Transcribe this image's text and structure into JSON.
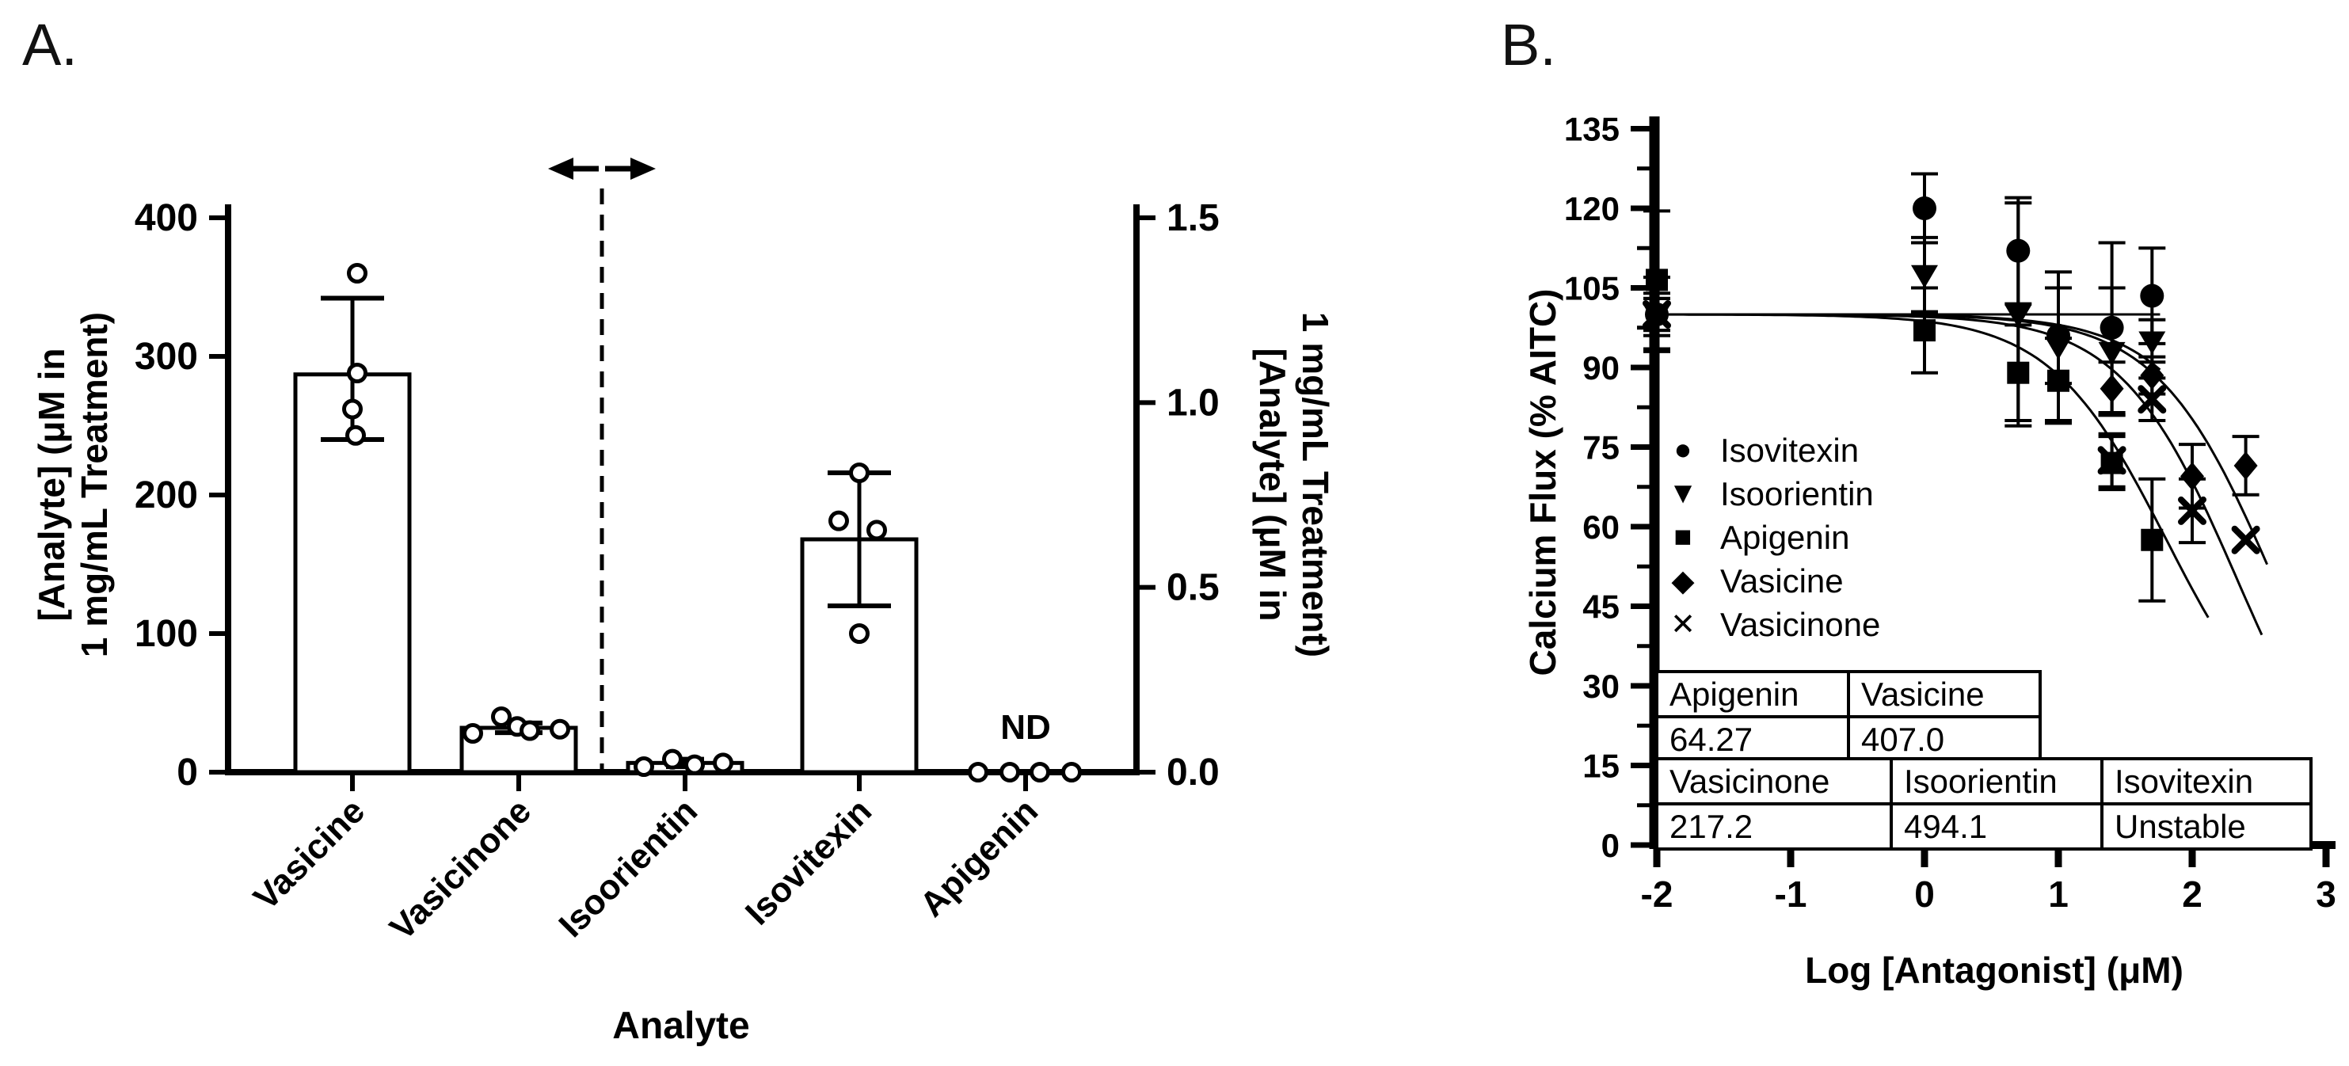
{
  "chart_data": [
    {
      "id": "panel-a",
      "type": "bar",
      "title": "A.",
      "xlabel": "Analyte",
      "left_axis": {
        "label": [
          "[Analyte] (μM in",
          "1 mg/mL Treatment)"
        ],
        "ticks": [
          0,
          100,
          200,
          300,
          400
        ],
        "range": [
          0,
          400
        ]
      },
      "right_axis": {
        "label": [
          "[Analyte] (μM in",
          "1 mg/mL Treatment)"
        ],
        "ticks": [
          "0.0",
          "0.5",
          "1.0",
          "1.5"
        ],
        "range": [
          0,
          1.5
        ]
      },
      "axis_break": {
        "style": "dashed",
        "arrows": [
          "left",
          "right"
        ],
        "position_between": [
          "Vasicinone",
          "Isoorientin"
        ]
      },
      "categories": [
        "Vasicine",
        "Vasicinone",
        "Isoorientin",
        "Isovitexin",
        "Apigenin"
      ],
      "series": [
        {
          "category": "Vasicine",
          "axis": "left",
          "mean": 287,
          "err_low": 240,
          "err_high": 342,
          "points": [
            360,
            288,
            262,
            243
          ],
          "point_dx": [
            6,
            6,
            0,
            4
          ]
        },
        {
          "category": "Vasicinone",
          "axis": "left",
          "mean": 32,
          "err_low": 28.5,
          "err_high": 35.5,
          "points": [
            28,
            40,
            33,
            30,
            31
          ],
          "point_dx": [
            -58,
            -22,
            -2,
            14,
            52
          ]
        },
        {
          "category": "Isoorientin",
          "axis": "right",
          "mean": 0.025,
          "err_low": 0.015,
          "err_high": 0.035,
          "points": [
            0.015,
            0.035,
            0.02,
            0.025
          ],
          "point_dx": [
            -52,
            -16,
            12,
            48
          ]
        },
        {
          "category": "Isovitexin",
          "axis": "right",
          "mean": 0.63,
          "err_low": 0.45,
          "err_high": 0.81,
          "points": [
            0.81,
            0.68,
            0.655,
            0.375
          ],
          "point_dx": [
            0,
            -26,
            22,
            0
          ]
        },
        {
          "category": "Apigenin",
          "axis": "right",
          "mean": null,
          "label": "ND",
          "points": [
            0,
            0,
            0,
            0
          ],
          "point_dx": [
            -60,
            -20,
            18,
            58
          ]
        }
      ]
    },
    {
      "id": "panel-b",
      "type": "scatter",
      "title": "B.",
      "xlabel": "Log [Antagonist] (μM)",
      "ylabel": "Calcium Flux (% AITC)",
      "xlim": [
        -2,
        3
      ],
      "ylim": [
        0,
        135
      ],
      "xticks": [
        -2,
        -1,
        0,
        1,
        2,
        3
      ],
      "yticks": [
        0,
        15,
        30,
        45,
        60,
        75,
        90,
        105,
        120,
        135
      ],
      "y_minor_step": 7.5,
      "reference_line": {
        "y": 100,
        "x_start": -2,
        "x_end": 1.76
      },
      "legend": [
        {
          "label": "Isovitexin",
          "marker": "circle"
        },
        {
          "label": "Isoorientin",
          "marker": "triangle-down"
        },
        {
          "label": "Apigenin",
          "marker": "square"
        },
        {
          "label": "Vasicine",
          "marker": "diamond"
        },
        {
          "label": "Vasicinone",
          "marker": "x"
        }
      ],
      "series": [
        {
          "name": "Isovitexin",
          "marker": "circle",
          "x": [
            -2,
            0,
            0.7,
            1,
            1.4,
            1.7
          ],
          "y": [
            100,
            120,
            112,
            96,
            97.5,
            103.5
          ],
          "err": [
            7,
            6.5,
            10,
            9,
            16,
            9
          ]
        },
        {
          "name": "Isoorientin",
          "marker": "triangle-down",
          "x": [
            -2,
            0,
            0.7,
            1,
            1.4,
            1.7
          ],
          "y": [
            100,
            107.5,
            100,
            94,
            93,
            95
          ],
          "err": [
            4,
            7,
            21,
            14,
            12,
            4
          ]
        },
        {
          "name": "Apigenin",
          "marker": "square",
          "x": [
            -2,
            0,
            0.7,
            1,
            1.4,
            1.7
          ],
          "y": [
            106.5,
            97,
            89,
            87.5,
            72,
            57.5
          ],
          "err": [
            13,
            8,
            9,
            8,
            5,
            11.5
          ]
        },
        {
          "name": "Vasicine",
          "marker": "diamond",
          "x": [
            -2,
            1.4,
            1.7,
            2,
            2.4
          ],
          "y": [
            100,
            86,
            88.5,
            69.5,
            71.5
          ],
          "err": [
            3,
            5,
            3.5,
            6,
            5.5
          ]
        },
        {
          "name": "Vasicinone",
          "marker": "x",
          "x": [
            -2,
            1.4,
            1.7,
            2,
            2.4
          ],
          "y": [
            100,
            72.5,
            84,
            63,
            57.5
          ],
          "err": [
            3,
            5,
            4,
            6,
            0
          ]
        }
      ],
      "fit_curves": [
        {
          "name": "Isoorientin",
          "logIC50": 2.694,
          "top": 100,
          "bottom": 0,
          "x_end": 1.78
        },
        {
          "name": "Vasicine",
          "logIC50": 2.61,
          "top": 100,
          "bottom": 0,
          "x_end": 2.56
        },
        {
          "name": "Vasicinone",
          "logIC50": 2.337,
          "top": 100,
          "bottom": 0,
          "x_end": 2.52
        },
        {
          "name": "Apigenin",
          "logIC50": 1.808,
          "top": 100,
          "bottom": 15,
          "x_end": 2.12
        }
      ],
      "ic50_tables": [
        {
          "headers": [
            "Apigenin",
            "Vasicine"
          ],
          "values": [
            "64.27",
            "407.0"
          ]
        },
        {
          "headers": [
            "Vasicinone",
            "Isoorientin",
            "Isovitexin"
          ],
          "values": [
            "217.2",
            "494.1",
            "Unstable"
          ]
        }
      ]
    }
  ]
}
